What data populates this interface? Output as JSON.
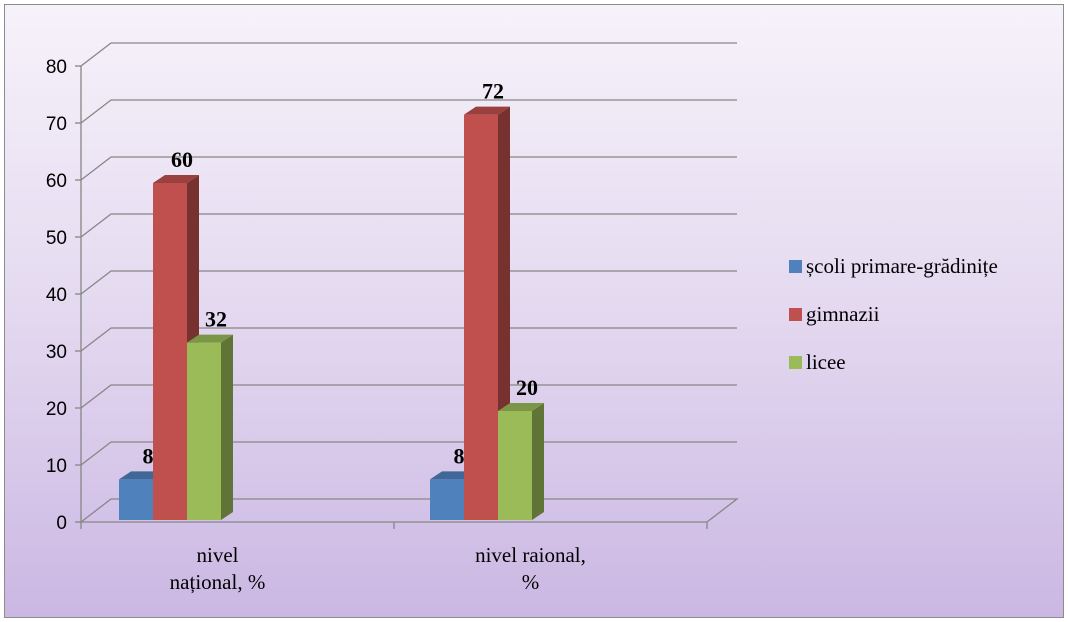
{
  "chart_data": {
    "type": "bar",
    "categories": [
      "nivel\nnațional, %",
      "nivel raional,\n%"
    ],
    "series": [
      {
        "name": "școli primare-grădinițe",
        "values": [
          8,
          8
        ],
        "color": "#4f81bd"
      },
      {
        "name": "gimnazii",
        "values": [
          60,
          72
        ],
        "color": "#c0504d"
      },
      {
        "name": "licee",
        "values": [
          32,
          20
        ],
        "color": "#9bbb59"
      }
    ],
    "title": "",
    "xlabel": "",
    "ylabel": "",
    "ylim": [
      0,
      80
    ],
    "yticks": [
      0,
      10,
      20,
      30,
      40,
      50,
      60,
      70,
      80
    ],
    "grid": true,
    "legend_position": "right",
    "data_labels": true
  }
}
